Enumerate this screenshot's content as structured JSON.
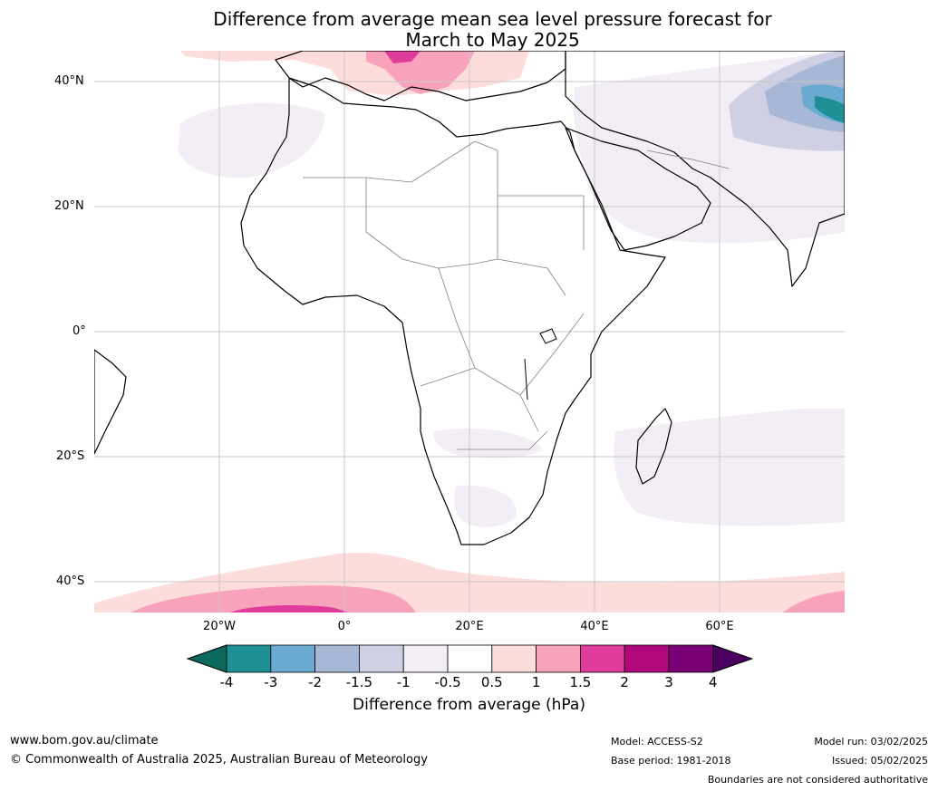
{
  "title": {
    "line1": "Difference from average mean sea level pressure forecast for",
    "line2": "March to May 2025"
  },
  "map": {
    "lat_labels": [
      "40°N",
      "20°N",
      "0°",
      "20°S",
      "40°S"
    ],
    "lon_labels": [
      "20°W",
      "0°",
      "20°E",
      "40°E",
      "60°E"
    ],
    "extent": {
      "lon": [
        -40,
        80
      ],
      "lat": [
        -45,
        45
      ]
    },
    "gridlines": true,
    "anomaly_regions": [
      {
        "region": "Mediterranean / southern Europe",
        "range_hPa": "0.5 to 2"
      },
      {
        "region": "North Atlantic off northwest Africa",
        "range_hPa": "-1 to -0.5"
      },
      {
        "region": "Middle East and Arabian Sea",
        "range_hPa": "-1 to -0.5"
      },
      {
        "region": "Central Asia / Himalaya",
        "range_hPa": "-4 to -1"
      },
      {
        "region": "Southern Africa interior",
        "range_hPa": "-1 to -0.5"
      },
      {
        "region": "Southwest Indian Ocean / Madagascar",
        "range_hPa": "-1 to -0.5"
      },
      {
        "region": "Southern Ocean",
        "range_hPa": "0.5 to 2"
      }
    ]
  },
  "colorbar": {
    "ticks": [
      "-4",
      "-3",
      "-2",
      "-1.5",
      "-1",
      "-0.5",
      "0.5",
      "1",
      "1.5",
      "2",
      "3",
      "4"
    ],
    "colors": [
      "#1f8f96",
      "#6aaad0",
      "#a7b8d6",
      "#cfd0e4",
      "#f3eef5",
      "#ffffff",
      "#fddcdc",
      "#f8a3bb",
      "#df3c9b",
      "#b0077b",
      "#7a0075"
    ],
    "low_extend_color": "#0c6a5c",
    "high_extend_color": "#4b0060",
    "label": "Difference from average (hPa)"
  },
  "footer": {
    "url": "www.bom.gov.au/climate",
    "copyright": "© Commonwealth of Australia 2025, Australian Bureau of Meteorology",
    "model": "Model: ACCESS-S2",
    "base_period": "Base period: 1981-2018",
    "model_run": "Model run: 03/02/2025",
    "issued": "Issued: 05/02/2025",
    "disclaimer": "Boundaries are not considered authoritative"
  }
}
